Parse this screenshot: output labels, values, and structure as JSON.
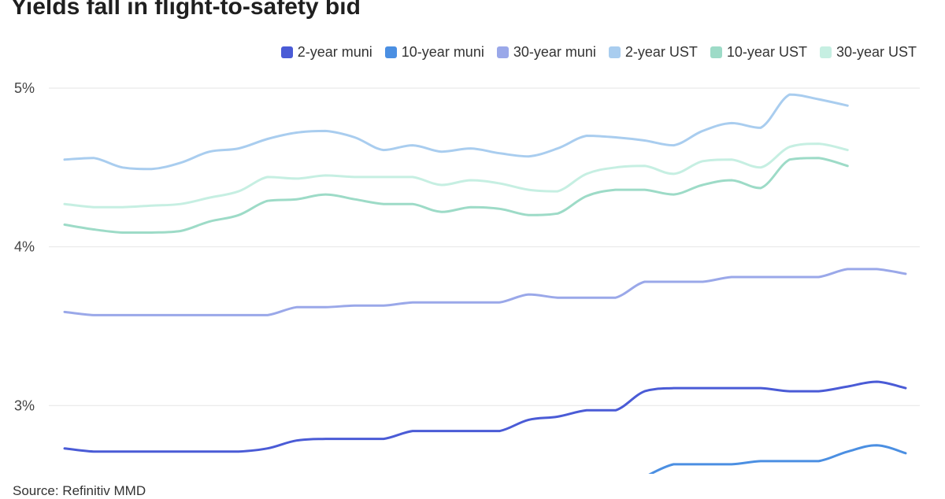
{
  "colors": {
    "2-year muni": "#4a5bd6",
    "10-year muni": "#4b8fe2",
    "30-year muni": "#9aa8e9",
    "2-year UST": "#a9cdef",
    "10-year UST": "#9ddbc7",
    "30-year UST": "#c6efe2",
    "grid": "#e6e6e6"
  },
  "chart_data": {
    "type": "line",
    "title": "Yields fall in flight-to-safety bid",
    "source": "Source: Refinitiv MMD",
    "ylim": [
      2.57,
      5.0
    ],
    "yticks": [
      {
        "value": 5,
        "label": "5%"
      },
      {
        "value": 4,
        "label": "4%"
      },
      {
        "value": 3,
        "label": "3%"
      }
    ],
    "grid": true,
    "legend_position": "top-right",
    "x": [
      0,
      1,
      2,
      3,
      4,
      5,
      6,
      7,
      8,
      9,
      10,
      11,
      12,
      13,
      14,
      15,
      16,
      17,
      18,
      19,
      20,
      21,
      22,
      23,
      24,
      25,
      26,
      27,
      28,
      29
    ],
    "series": [
      {
        "name": "2-year muni",
        "values": [
          2.73,
          2.71,
          2.71,
          2.71,
          2.71,
          2.71,
          2.71,
          2.73,
          2.78,
          2.79,
          2.79,
          2.79,
          2.84,
          2.84,
          2.84,
          2.84,
          2.91,
          2.93,
          2.97,
          2.97,
          3.09,
          3.11,
          3.11,
          3.11,
          3.11,
          3.09,
          3.09,
          3.12,
          3.15,
          3.11
        ]
      },
      {
        "name": "10-year muni",
        "values": [
          null,
          null,
          null,
          null,
          null,
          null,
          null,
          null,
          null,
          null,
          null,
          null,
          null,
          null,
          null,
          null,
          null,
          null,
          null,
          null,
          2.55,
          2.63,
          2.63,
          2.63,
          2.65,
          2.65,
          2.65,
          2.71,
          2.75,
          2.7
        ]
      },
      {
        "name": "30-year muni",
        "values": [
          3.59,
          3.57,
          3.57,
          3.57,
          3.57,
          3.57,
          3.57,
          3.57,
          3.62,
          3.62,
          3.63,
          3.63,
          3.65,
          3.65,
          3.65,
          3.65,
          3.7,
          3.68,
          3.68,
          3.68,
          3.78,
          3.78,
          3.78,
          3.81,
          3.81,
          3.81,
          3.81,
          3.86,
          3.86,
          3.83
        ]
      },
      {
        "name": "2-year UST",
        "values": [
          4.55,
          4.56,
          4.5,
          4.49,
          4.53,
          4.6,
          4.62,
          4.68,
          4.72,
          4.73,
          4.69,
          4.61,
          4.64,
          4.6,
          4.62,
          4.59,
          4.57,
          4.62,
          4.7,
          4.69,
          4.67,
          4.64,
          4.73,
          4.78,
          4.75,
          4.96,
          4.93,
          4.89,
          null,
          null
        ]
      },
      {
        "name": "10-year UST",
        "values": [
          4.14,
          4.11,
          4.09,
          4.09,
          4.1,
          4.16,
          4.2,
          4.29,
          4.3,
          4.33,
          4.3,
          4.27,
          4.27,
          4.22,
          4.25,
          4.24,
          4.2,
          4.21,
          4.32,
          4.36,
          4.36,
          4.33,
          4.39,
          4.42,
          4.37,
          4.55,
          4.56,
          4.51,
          null,
          null
        ]
      },
      {
        "name": "30-year UST",
        "values": [
          4.27,
          4.25,
          4.25,
          4.26,
          4.27,
          4.31,
          4.35,
          4.44,
          4.43,
          4.45,
          4.44,
          4.44,
          4.44,
          4.39,
          4.42,
          4.4,
          4.36,
          4.35,
          4.46,
          4.5,
          4.51,
          4.46,
          4.54,
          4.55,
          4.5,
          4.63,
          4.65,
          4.61,
          null,
          null
        ]
      }
    ]
  }
}
